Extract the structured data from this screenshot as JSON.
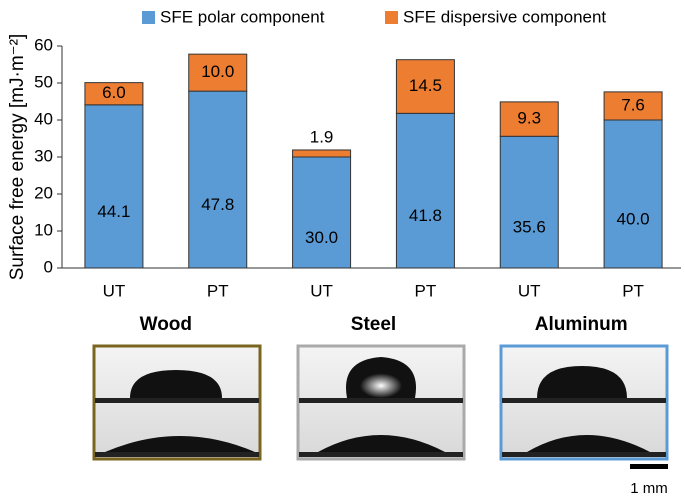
{
  "chart_data": {
    "type": "stacked_bar",
    "y_label": "Surface free energy [mJ·m⁻²]",
    "categories": [
      "UT",
      "PT",
      "UT",
      "PT",
      "UT",
      "PT"
    ],
    "group_labels": [
      "Wood",
      "Steel",
      "Aluminum"
    ],
    "series": [
      {
        "name": "SFE polar component",
        "color": "#5b9bd5",
        "values": [
          44.1,
          47.8,
          30.0,
          41.8,
          35.6,
          40.0
        ],
        "value_labels": [
          "44.1",
          "47.8",
          "30.0",
          "41.8",
          "35.6",
          "40.0"
        ]
      },
      {
        "name": "SFE dispersive component",
        "color": "#ed7d31",
        "values": [
          6.0,
          10.0,
          1.9,
          14.5,
          9.3,
          7.6
        ],
        "value_labels": [
          "6.0",
          "10.0",
          "1.9",
          "14.5",
          "9.3",
          "7.6"
        ]
      }
    ],
    "ylim": [
      0,
      60
    ],
    "yticks": [
      0,
      10,
      20,
      30,
      40,
      50,
      60
    ],
    "grid": false,
    "legend": "top",
    "scale_bar_label": "1 mm"
  }
}
